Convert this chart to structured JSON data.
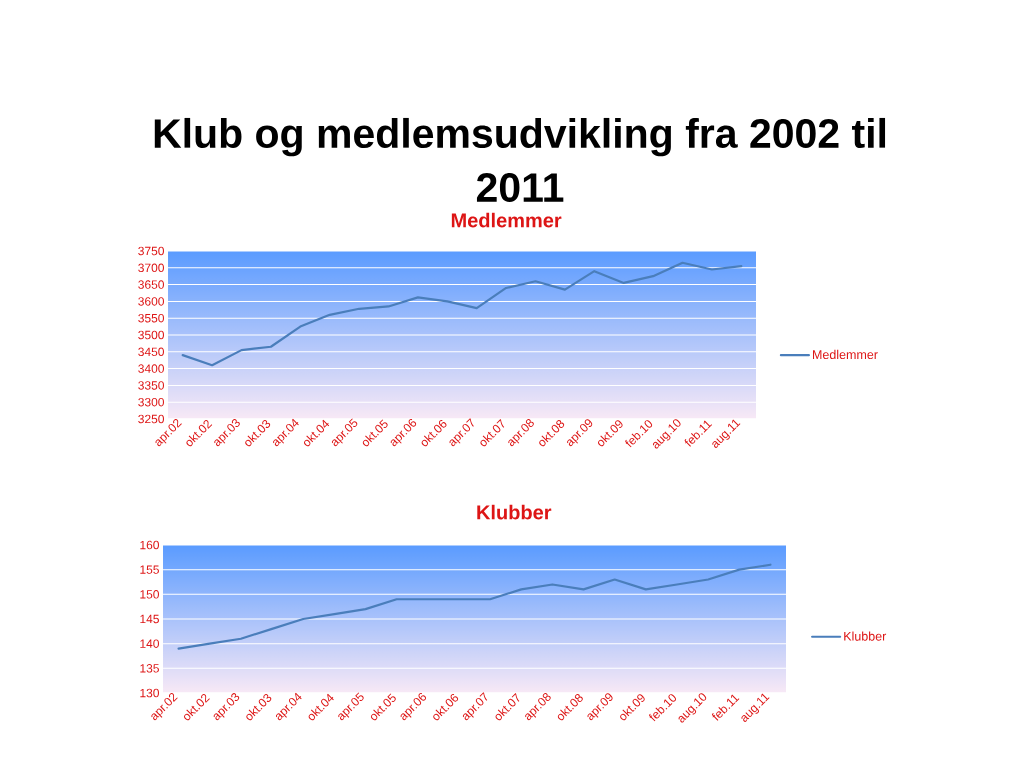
{
  "chart_data": [
    {
      "type": "other",
      "title": "Klub og medlemsudvikling fra 2002 til 2011"
    },
    {
      "type": "line",
      "title": "Medlemmer",
      "categories": [
        "apr.02",
        "okt.02",
        "apr.03",
        "okt.03",
        "apr.04",
        "okt.04",
        "apr.05",
        "okt.05",
        "apr.06",
        "okt.06",
        "apr.07",
        "okt.07",
        "apr.08",
        "okt.08",
        "apr.09",
        "okt.09",
        "feb.10",
        "aug.10",
        "feb.11",
        "aug.11"
      ],
      "series": [
        {
          "name": "Medlemmer",
          "color": "#4a7ebb",
          "values": [
            3440,
            3410,
            3455,
            3465,
            3525,
            3560,
            3578,
            3585,
            3612,
            3600,
            3580,
            3640,
            3660,
            3635,
            3690,
            3655,
            3675,
            3715,
            3695,
            3705
          ]
        }
      ],
      "ylim": [
        3250,
        3750
      ],
      "yticks": [
        3250,
        3300,
        3350,
        3400,
        3450,
        3500,
        3550,
        3600,
        3650,
        3700,
        3750
      ],
      "grid": "y",
      "legend": "right"
    },
    {
      "type": "line",
      "title": "Klubber",
      "categories": [
        "apr.02",
        "okt.02",
        "apr.03",
        "okt.03",
        "apr.04",
        "okt.04",
        "apr.05",
        "okt.05",
        "apr.06",
        "okt.06",
        "apr.07",
        "okt.07",
        "apr.08",
        "okt.08",
        "apr.09",
        "okt.09",
        "feb.10",
        "aug.10",
        "feb.11",
        "aug.11"
      ],
      "series": [
        {
          "name": "Klubber",
          "color": "#4a7ebb",
          "values": [
            139,
            140,
            141,
            143,
            145,
            146,
            147,
            149,
            149,
            149,
            149,
            151,
            152,
            151,
            153,
            151,
            152,
            153,
            155,
            156
          ]
        }
      ],
      "ylim": [
        130,
        160
      ],
      "yticks": [
        130,
        135,
        140,
        145,
        150,
        155,
        160
      ],
      "grid": "y",
      "legend": "right"
    }
  ]
}
